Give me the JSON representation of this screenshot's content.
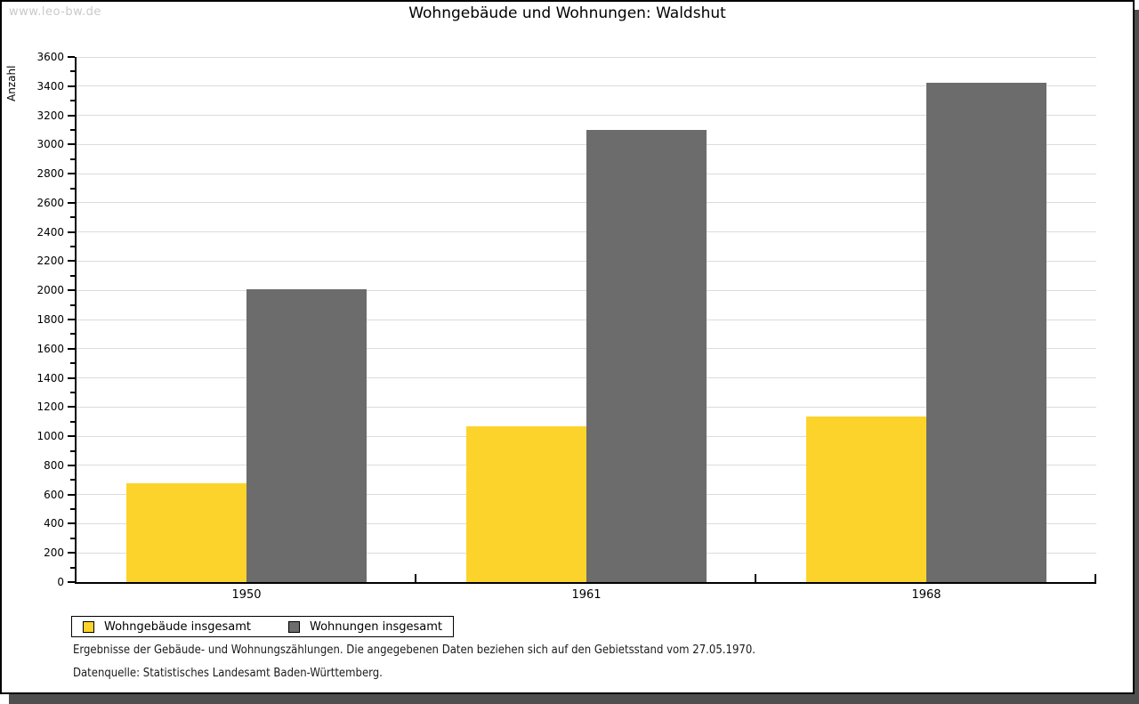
{
  "watermark": "www.leo-bw.de",
  "title": "Wohngebäude und Wohnungen: Waldshut",
  "chart_data": {
    "type": "bar",
    "title": "Wohngebäude und Wohnungen: Waldshut",
    "categories": [
      "1950",
      "1961",
      "1968"
    ],
    "series": [
      {
        "name": "Wohngebäude insgesamt",
        "color": "#FCD32B",
        "values": [
          680,
          1070,
          1135
        ]
      },
      {
        "name": "Wohnungen insgesamt",
        "color": "#6C6C6C",
        "values": [
          2010,
          3100,
          3425
        ]
      }
    ],
    "ylabel": "Anzahl",
    "xlabel": "",
    "ylim": [
      0,
      3600
    ],
    "ytick_step": 200,
    "yminor_step": 100,
    "grid": true,
    "grid_color": "#dcdcdc",
    "legend_position": "bottom-left"
  },
  "footnotes": [
    "Ergebnisse der Gebäude- und Wohnungszählungen. Die angegebenen Daten beziehen sich auf den Gebietsstand vom 27.05.1970.",
    "Datenquelle: Statistisches Landesamt Baden-Württemberg."
  ]
}
